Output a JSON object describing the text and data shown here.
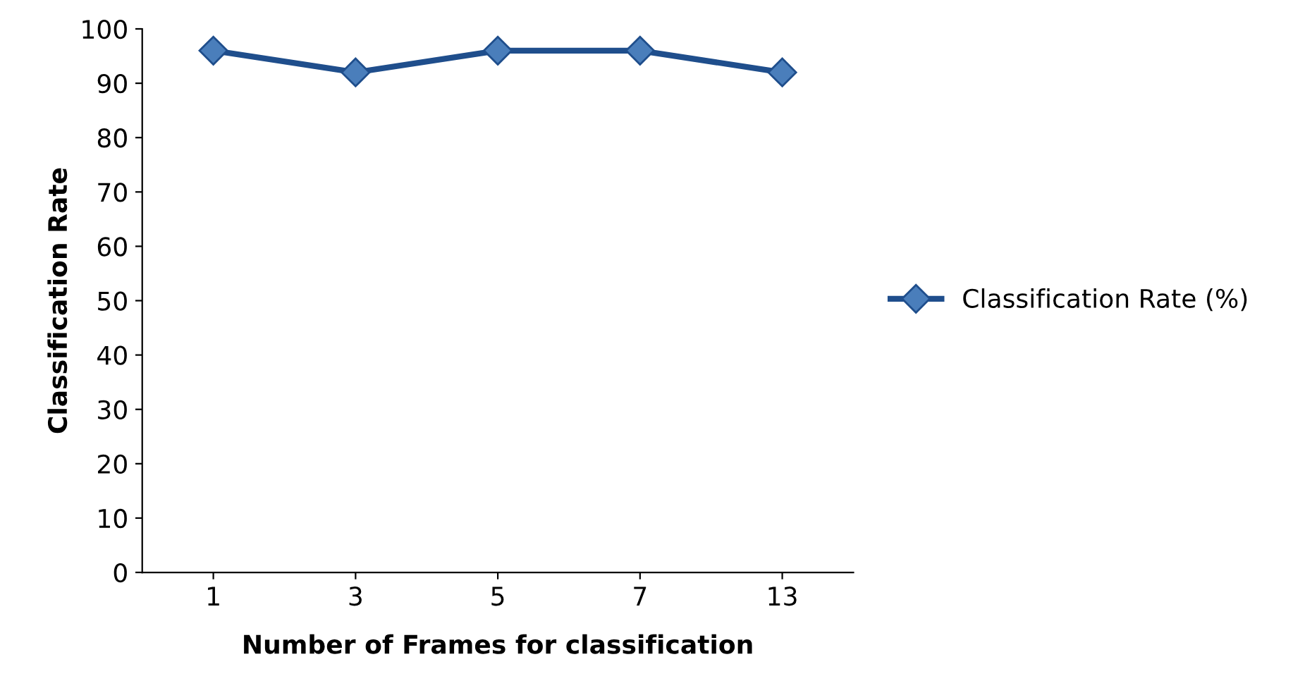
{
  "chart_data": {
    "type": "line",
    "xlabel": "Number of Frames for classification",
    "ylabel": "Classification Rate",
    "categories": [
      "1",
      "3",
      "5",
      "7",
      "13"
    ],
    "series": [
      {
        "name": "Classification Rate (%)",
        "color": "#1f4e8c",
        "values": [
          96,
          92,
          96,
          96,
          92
        ]
      }
    ],
    "ylim": [
      0,
      100
    ],
    "yticks": [
      0,
      10,
      20,
      30,
      40,
      50,
      60,
      70,
      80,
      90,
      100
    ],
    "grid": false,
    "legend": "right",
    "marker": "diamond",
    "line_style": "solid"
  }
}
